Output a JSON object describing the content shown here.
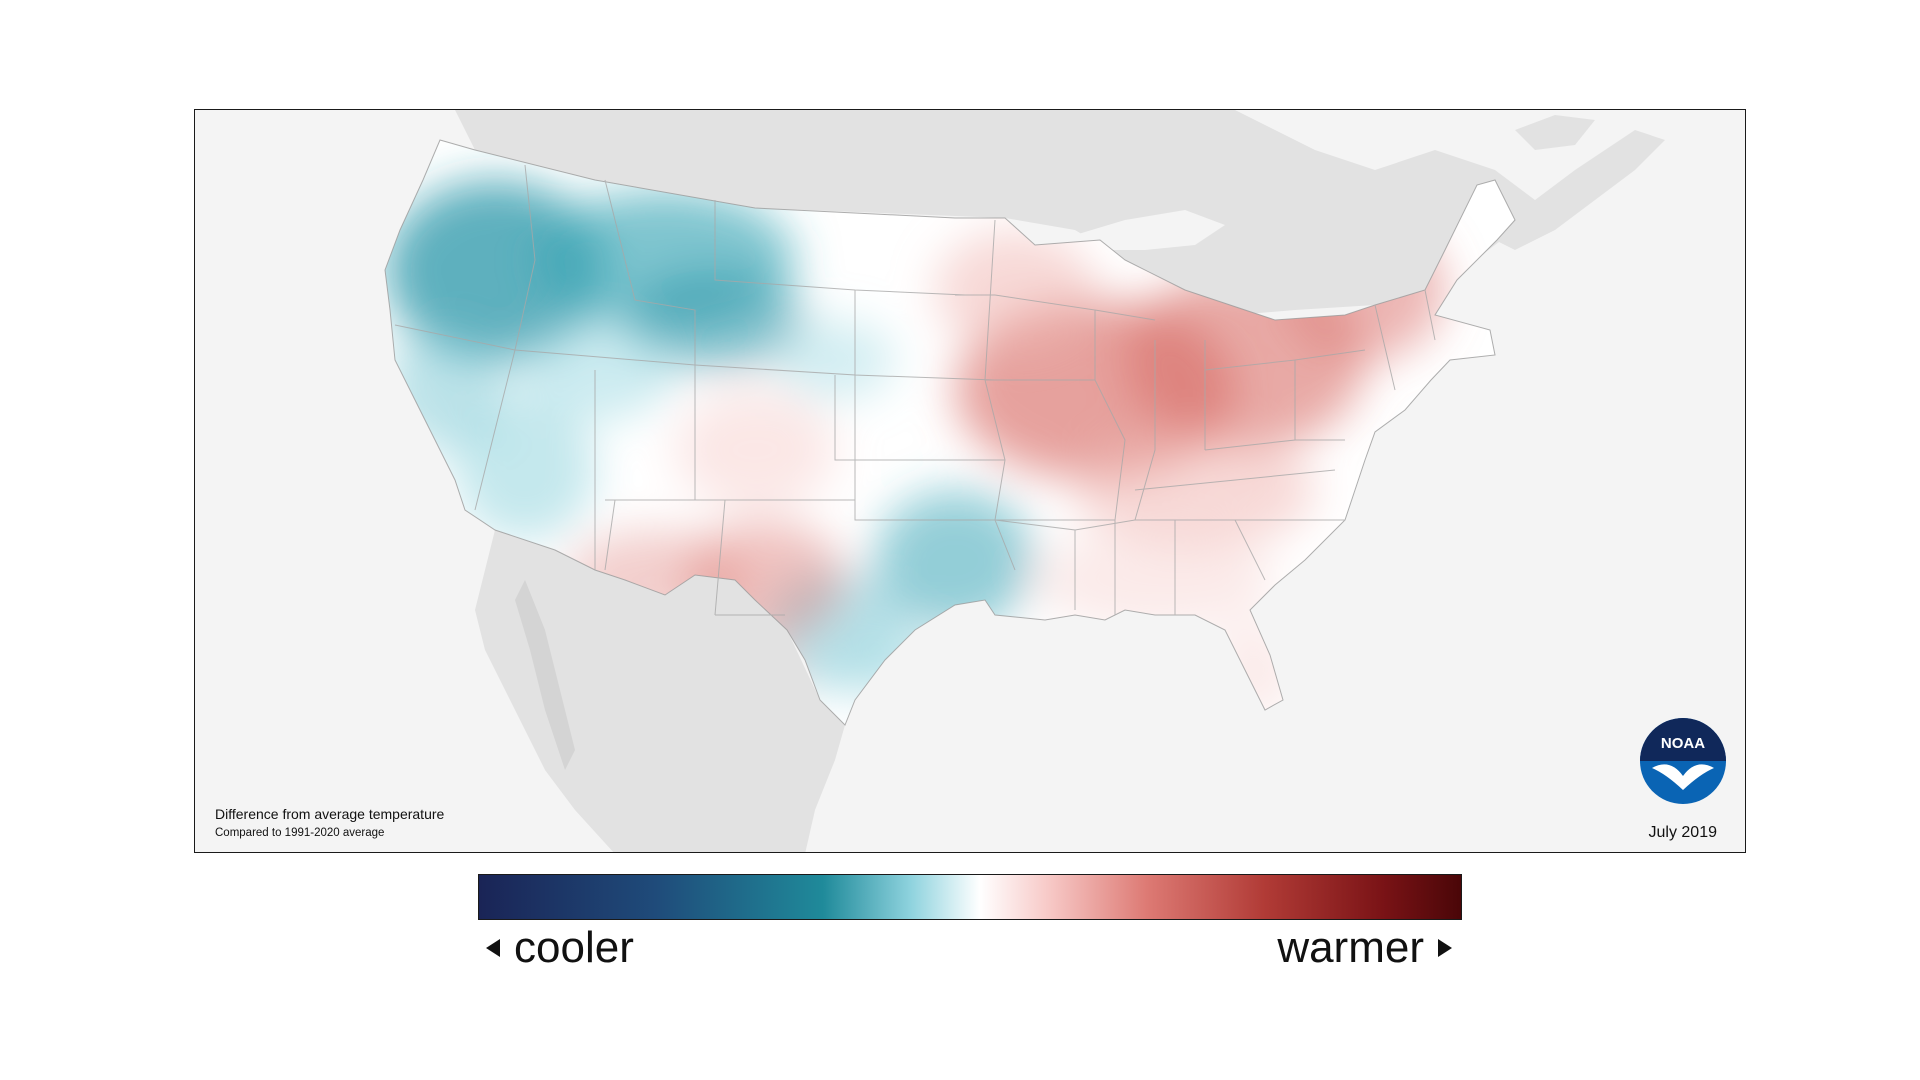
{
  "map": {
    "caption_main": "Difference from average temperature",
    "caption_sub": "Compared to 1991-2020 average",
    "date": "July 2019",
    "logo_text": "NOAA"
  },
  "legend": {
    "left_label": "cooler",
    "right_label": "warmer"
  },
  "colors": {
    "cool_dark": "#1a2456",
    "cool": "#1f8a9a",
    "neutral": "#ffffff",
    "warm": "#dd7a74",
    "warm_dark": "#4a0608",
    "land_outside": "#e2e2e2",
    "water": "#f4f4f4",
    "noaa_blue": "#0a64b4",
    "noaa_navy": "#10285a"
  }
}
